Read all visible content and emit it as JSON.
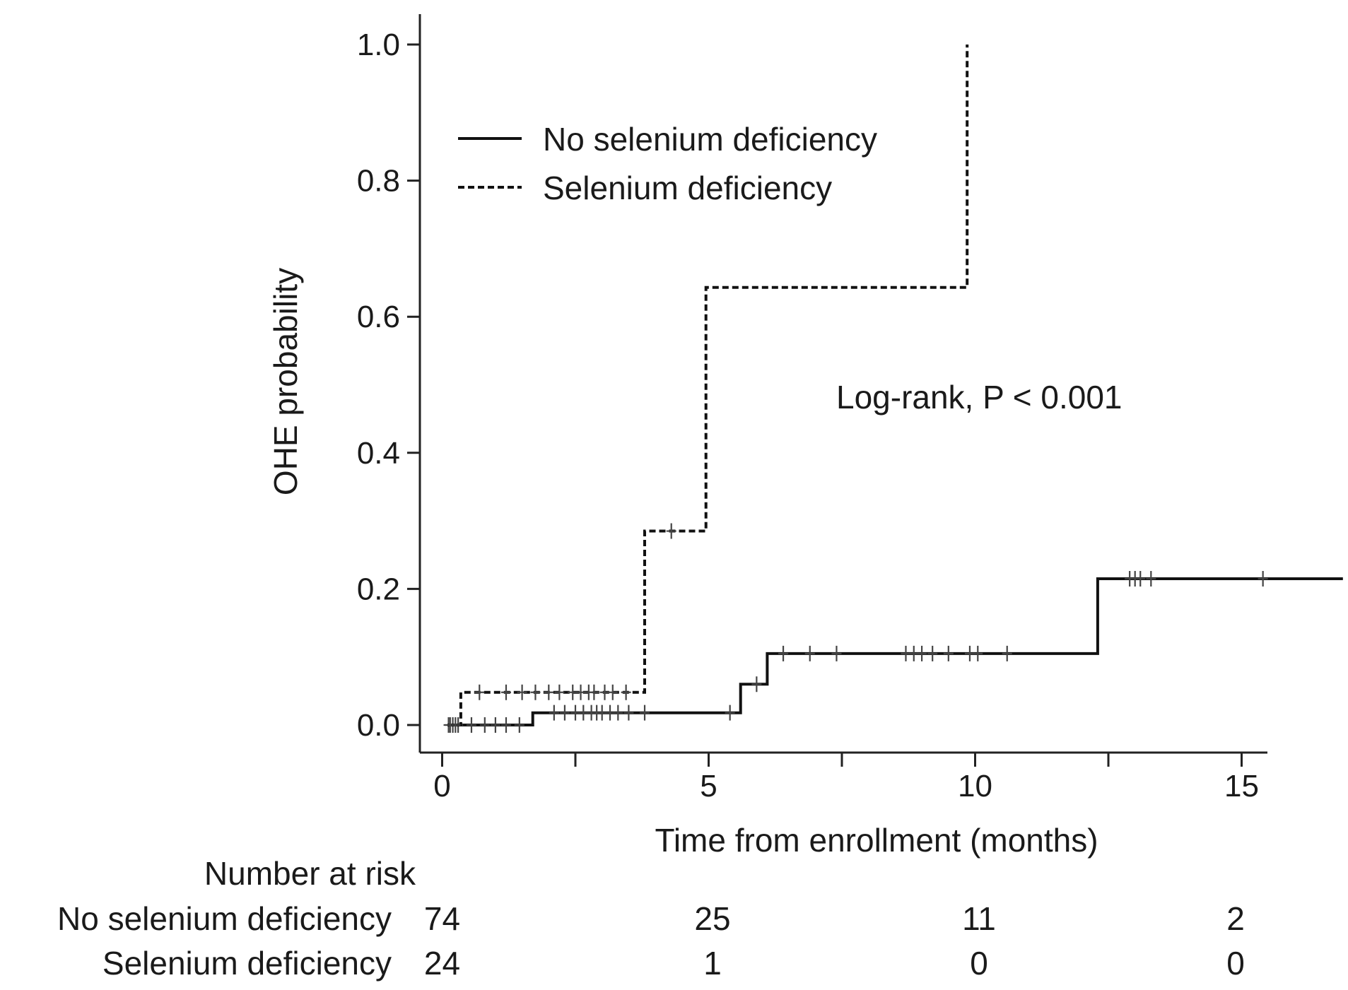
{
  "chart_data": {
    "type": "line",
    "title": "",
    "xlabel": "Time from enrollment (months)",
    "ylabel": "OHE probability",
    "xlim": [
      -0.5,
      15.8
    ],
    "ylim": [
      -0.04,
      1.04
    ],
    "xticks": [
      0,
      5,
      10,
      15
    ],
    "xticks_minor": [
      2.5,
      7.5,
      12.5
    ],
    "yticks": [
      0.0,
      0.2,
      0.4,
      0.6,
      0.8,
      1.0
    ],
    "ytick_labels": [
      "0.0",
      "0.2",
      "0.4",
      "0.6",
      "0.8",
      "1.0"
    ],
    "xtick_labels": [
      "0",
      "5",
      "10",
      "15"
    ],
    "annotation": "Log-rank, P < 0.001",
    "series": [
      {
        "name": "No selenium deficiency",
        "style": "solid",
        "steps": [
          [
            0.1,
            0.0
          ],
          [
            1.7,
            0.0
          ],
          [
            1.7,
            0.018
          ],
          [
            5.6,
            0.018
          ],
          [
            5.6,
            0.06
          ],
          [
            6.1,
            0.06
          ],
          [
            6.1,
            0.105
          ],
          [
            12.3,
            0.105
          ],
          [
            12.3,
            0.215
          ],
          [
            16.9,
            0.215
          ]
        ],
        "censors": [
          [
            0.12,
            0.0
          ],
          [
            0.2,
            0.0
          ],
          [
            0.3,
            0.0
          ],
          [
            0.55,
            0.0
          ],
          [
            0.8,
            0.0
          ],
          [
            1.0,
            0.0
          ],
          [
            1.2,
            0.0
          ],
          [
            1.45,
            0.0
          ],
          [
            2.1,
            0.018
          ],
          [
            2.3,
            0.018
          ],
          [
            2.5,
            0.018
          ],
          [
            2.65,
            0.018
          ],
          [
            2.8,
            0.018
          ],
          [
            2.9,
            0.018
          ],
          [
            3.0,
            0.018
          ],
          [
            3.15,
            0.018
          ],
          [
            3.3,
            0.018
          ],
          [
            3.5,
            0.018
          ],
          [
            3.8,
            0.018
          ],
          [
            5.4,
            0.018
          ],
          [
            5.9,
            0.06
          ],
          [
            6.4,
            0.105
          ],
          [
            6.9,
            0.105
          ],
          [
            7.4,
            0.105
          ],
          [
            8.7,
            0.105
          ],
          [
            8.85,
            0.105
          ],
          [
            9.0,
            0.105
          ],
          [
            9.2,
            0.105
          ],
          [
            9.5,
            0.105
          ],
          [
            9.9,
            0.105
          ],
          [
            10.05,
            0.105
          ],
          [
            10.6,
            0.105
          ],
          [
            12.9,
            0.215
          ],
          [
            13.0,
            0.215
          ],
          [
            13.1,
            0.215
          ],
          [
            13.3,
            0.215
          ],
          [
            15.4,
            0.215
          ]
        ]
      },
      {
        "name": "Selenium deficiency",
        "style": "dashed",
        "steps": [
          [
            0.1,
            0.0
          ],
          [
            0.35,
            0.0
          ],
          [
            0.35,
            0.048
          ],
          [
            3.8,
            0.048
          ],
          [
            3.8,
            0.285
          ],
          [
            4.95,
            0.285
          ],
          [
            4.95,
            0.643
          ],
          [
            9.85,
            0.643
          ],
          [
            9.85,
            1.0
          ]
        ],
        "censors": [
          [
            0.15,
            0.0
          ],
          [
            0.25,
            0.0
          ],
          [
            0.7,
            0.048
          ],
          [
            1.2,
            0.048
          ],
          [
            1.5,
            0.048
          ],
          [
            1.75,
            0.048
          ],
          [
            2.0,
            0.048
          ],
          [
            2.2,
            0.048
          ],
          [
            2.45,
            0.048
          ],
          [
            2.6,
            0.048
          ],
          [
            2.75,
            0.048
          ],
          [
            2.85,
            0.048
          ],
          [
            3.05,
            0.048
          ],
          [
            3.2,
            0.048
          ],
          [
            3.45,
            0.048
          ],
          [
            4.3,
            0.285
          ]
        ]
      }
    ],
    "risk_table": {
      "title": "Number at risk",
      "times": [
        0,
        5,
        10,
        15
      ],
      "rows": [
        {
          "name": "No selenium deficiency",
          "counts": [
            "74",
            "25",
            "11",
            "2"
          ]
        },
        {
          "name": "Selenium deficiency",
          "counts": [
            "24",
            "1",
            "0",
            "0"
          ]
        }
      ]
    }
  }
}
